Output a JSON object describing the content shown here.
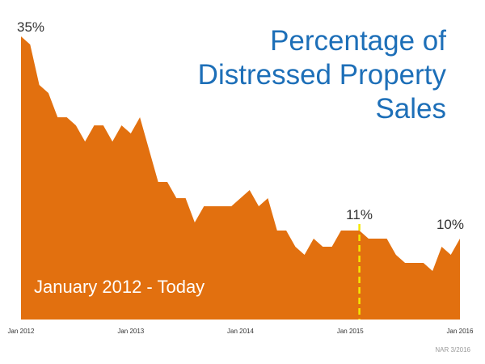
{
  "chart_data": {
    "type": "area",
    "title_lines": [
      "Percentage of",
      "Distressed Property",
      "Sales"
    ],
    "period_label": "January 2012 - Today",
    "source": "NAR 3/2016",
    "unit": "%",
    "color": "#e2700f",
    "marker_color": "#f5e600",
    "title_color": "#1d6fb8",
    "x_ticks": [
      "Jan 2012",
      "Jan 2013",
      "Jan 2014",
      "Jan 2015",
      "Jan 2016"
    ],
    "ylim": [
      0,
      36
    ],
    "x": [
      "Jan 2012",
      "Feb 2012",
      "Mar 2012",
      "Apr 2012",
      "May 2012",
      "Jun 2012",
      "Jul 2012",
      "Aug 2012",
      "Sep 2012",
      "Oct 2012",
      "Nov 2012",
      "Dec 2012",
      "Jan 2013",
      "Feb 2013",
      "Mar 2013",
      "Apr 2013",
      "May 2013",
      "Jun 2013",
      "Jul 2013",
      "Aug 2013",
      "Sep 2013",
      "Oct 2013",
      "Nov 2013",
      "Dec 2013",
      "Jan 2014",
      "Feb 2014",
      "Mar 2014",
      "Apr 2014",
      "May 2014",
      "Jun 2014",
      "Jul 2014",
      "Aug 2014",
      "Sep 2014",
      "Oct 2014",
      "Nov 2014",
      "Dec 2014",
      "Jan 2015",
      "Feb 2015",
      "Mar 2015",
      "Apr 2015",
      "May 2015",
      "Jun 2015",
      "Jul 2015",
      "Aug 2015",
      "Sep 2015",
      "Oct 2015",
      "Nov 2015",
      "Dec 2015",
      "Jan 2016"
    ],
    "values": [
      35,
      34,
      29,
      28,
      25,
      25,
      24,
      22,
      24,
      24,
      22,
      24,
      23,
      25,
      21,
      17,
      17,
      15,
      15,
      12,
      14,
      14,
      14,
      14,
      15,
      16,
      14,
      15,
      11,
      11,
      9,
      8,
      10,
      9,
      9,
      11,
      11,
      11,
      10,
      10,
      10,
      8,
      7,
      7,
      7,
      6,
      9,
      8,
      10
    ],
    "annotations": [
      {
        "label": "35%",
        "x": "Jan 2012",
        "value": 35
      },
      {
        "label": "11%",
        "x": "Feb 2015",
        "value": 11,
        "marker": true
      },
      {
        "label": "10%",
        "x": "Jan 2016",
        "value": 10
      }
    ]
  }
}
